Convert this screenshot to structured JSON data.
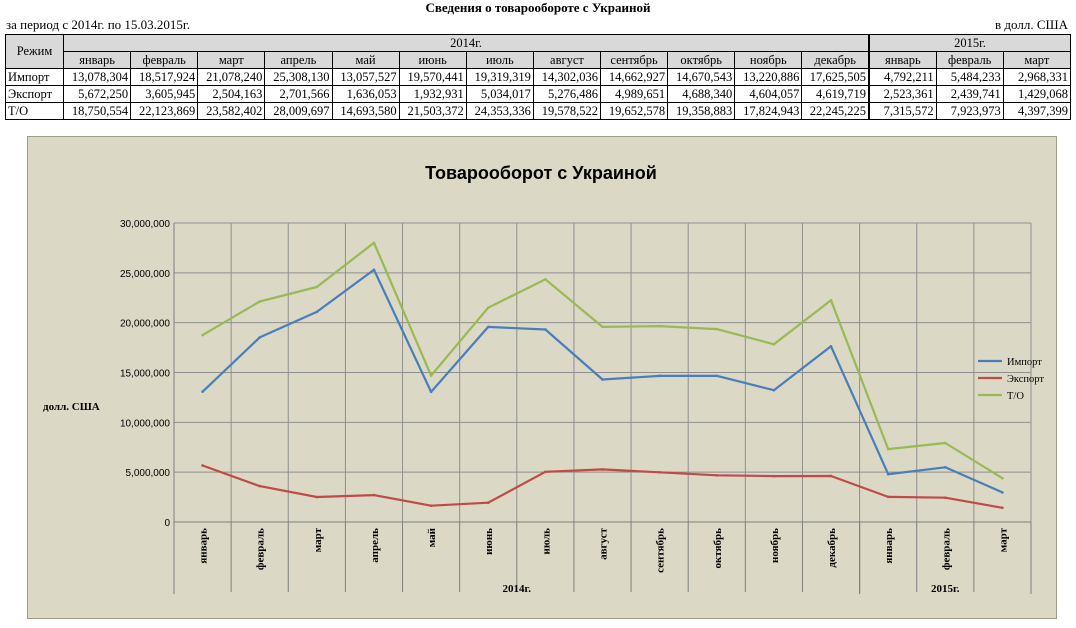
{
  "header": {
    "title": "Сведения о товарообороте с Украиной",
    "period": "за период с 2014г. по 15.03.2015г.",
    "currency": "в долл. США"
  },
  "table": {
    "corner_label": "Режим",
    "year_groups": [
      {
        "label": "2014г.",
        "span": 12
      },
      {
        "label": "2015г.",
        "span": 3
      }
    ],
    "months": [
      "январь",
      "февраль",
      "март",
      "апрель",
      "май",
      "июнь",
      "июль",
      "август",
      "сентябрь",
      "октябрь",
      "ноябрь",
      "декабрь",
      "январь",
      "февраль",
      "март"
    ],
    "rows": [
      {
        "label": "Импорт",
        "values": [
          "13,078,304",
          "18,517,924",
          "21,078,240",
          "25,308,130",
          "13,057,527",
          "19,570,441",
          "19,319,319",
          "14,302,036",
          "14,662,927",
          "14,670,543",
          "13,220,886",
          "17,625,505",
          "4,792,211",
          "5,484,233",
          "2,968,331"
        ]
      },
      {
        "label": "Экспорт",
        "values": [
          "5,672,250",
          "3,605,945",
          "2,504,163",
          "2,701,566",
          "1,636,053",
          "1,932,931",
          "5,034,017",
          "5,276,486",
          "4,989,651",
          "4,688,340",
          "4,604,057",
          "4,619,719",
          "2,523,361",
          "2,439,741",
          "1,429,068"
        ]
      },
      {
        "label": "Т/О",
        "values": [
          "18,750,554",
          "22,123,869",
          "23,582,402",
          "28,009,697",
          "14,693,580",
          "21,503,372",
          "24,353,336",
          "19,578,522",
          "19,652,578",
          "19,358,883",
          "17,824,943",
          "22,245,225",
          "7,315,572",
          "7,923,973",
          "4,397,399"
        ]
      }
    ]
  },
  "chart_data": {
    "type": "line",
    "title": "Товарооборот с Украиной",
    "ylabel": "долл. США",
    "xlabel": "",
    "categories": [
      "январь",
      "февраль",
      "март",
      "апрель",
      "май",
      "июнь",
      "июль",
      "август",
      "сентябрь",
      "октябрь",
      "ноябрь",
      "декабрь",
      "январь",
      "февраль",
      "март"
    ],
    "category_groups": [
      {
        "label": "2014г.",
        "count": 12
      },
      {
        "label": "2015г.",
        "count": 3
      }
    ],
    "ylim": [
      0,
      30000000
    ],
    "yticks": [
      0,
      5000000,
      10000000,
      15000000,
      20000000,
      25000000,
      30000000
    ],
    "ytick_labels": [
      "0",
      "5,000,000",
      "10,000,000",
      "15,000,000",
      "20,000,000",
      "25,000,000",
      "30,000,000"
    ],
    "grid": true,
    "legend_position": "right",
    "series": [
      {
        "name": "Импорт",
        "color": "#4a7ebb",
        "values": [
          13078304,
          18517924,
          21078240,
          25308130,
          13057527,
          19570441,
          19319319,
          14302036,
          14662927,
          14670543,
          13220886,
          17625505,
          4792211,
          5484233,
          2968331
        ]
      },
      {
        "name": "Экспорт",
        "color": "#be4b48",
        "values": [
          5672250,
          3605945,
          2504163,
          2701566,
          1636053,
          1932931,
          5034017,
          5276486,
          4989651,
          4688340,
          4604057,
          4619719,
          2523361,
          2439741,
          1429068
        ]
      },
      {
        "name": "Т/О",
        "color": "#98b954",
        "values": [
          18750554,
          22123869,
          23582402,
          28009697,
          14693580,
          21503372,
          24353336,
          19578522,
          19652578,
          19358883,
          17824943,
          22245225,
          7315572,
          7923973,
          4397399
        ]
      }
    ]
  }
}
